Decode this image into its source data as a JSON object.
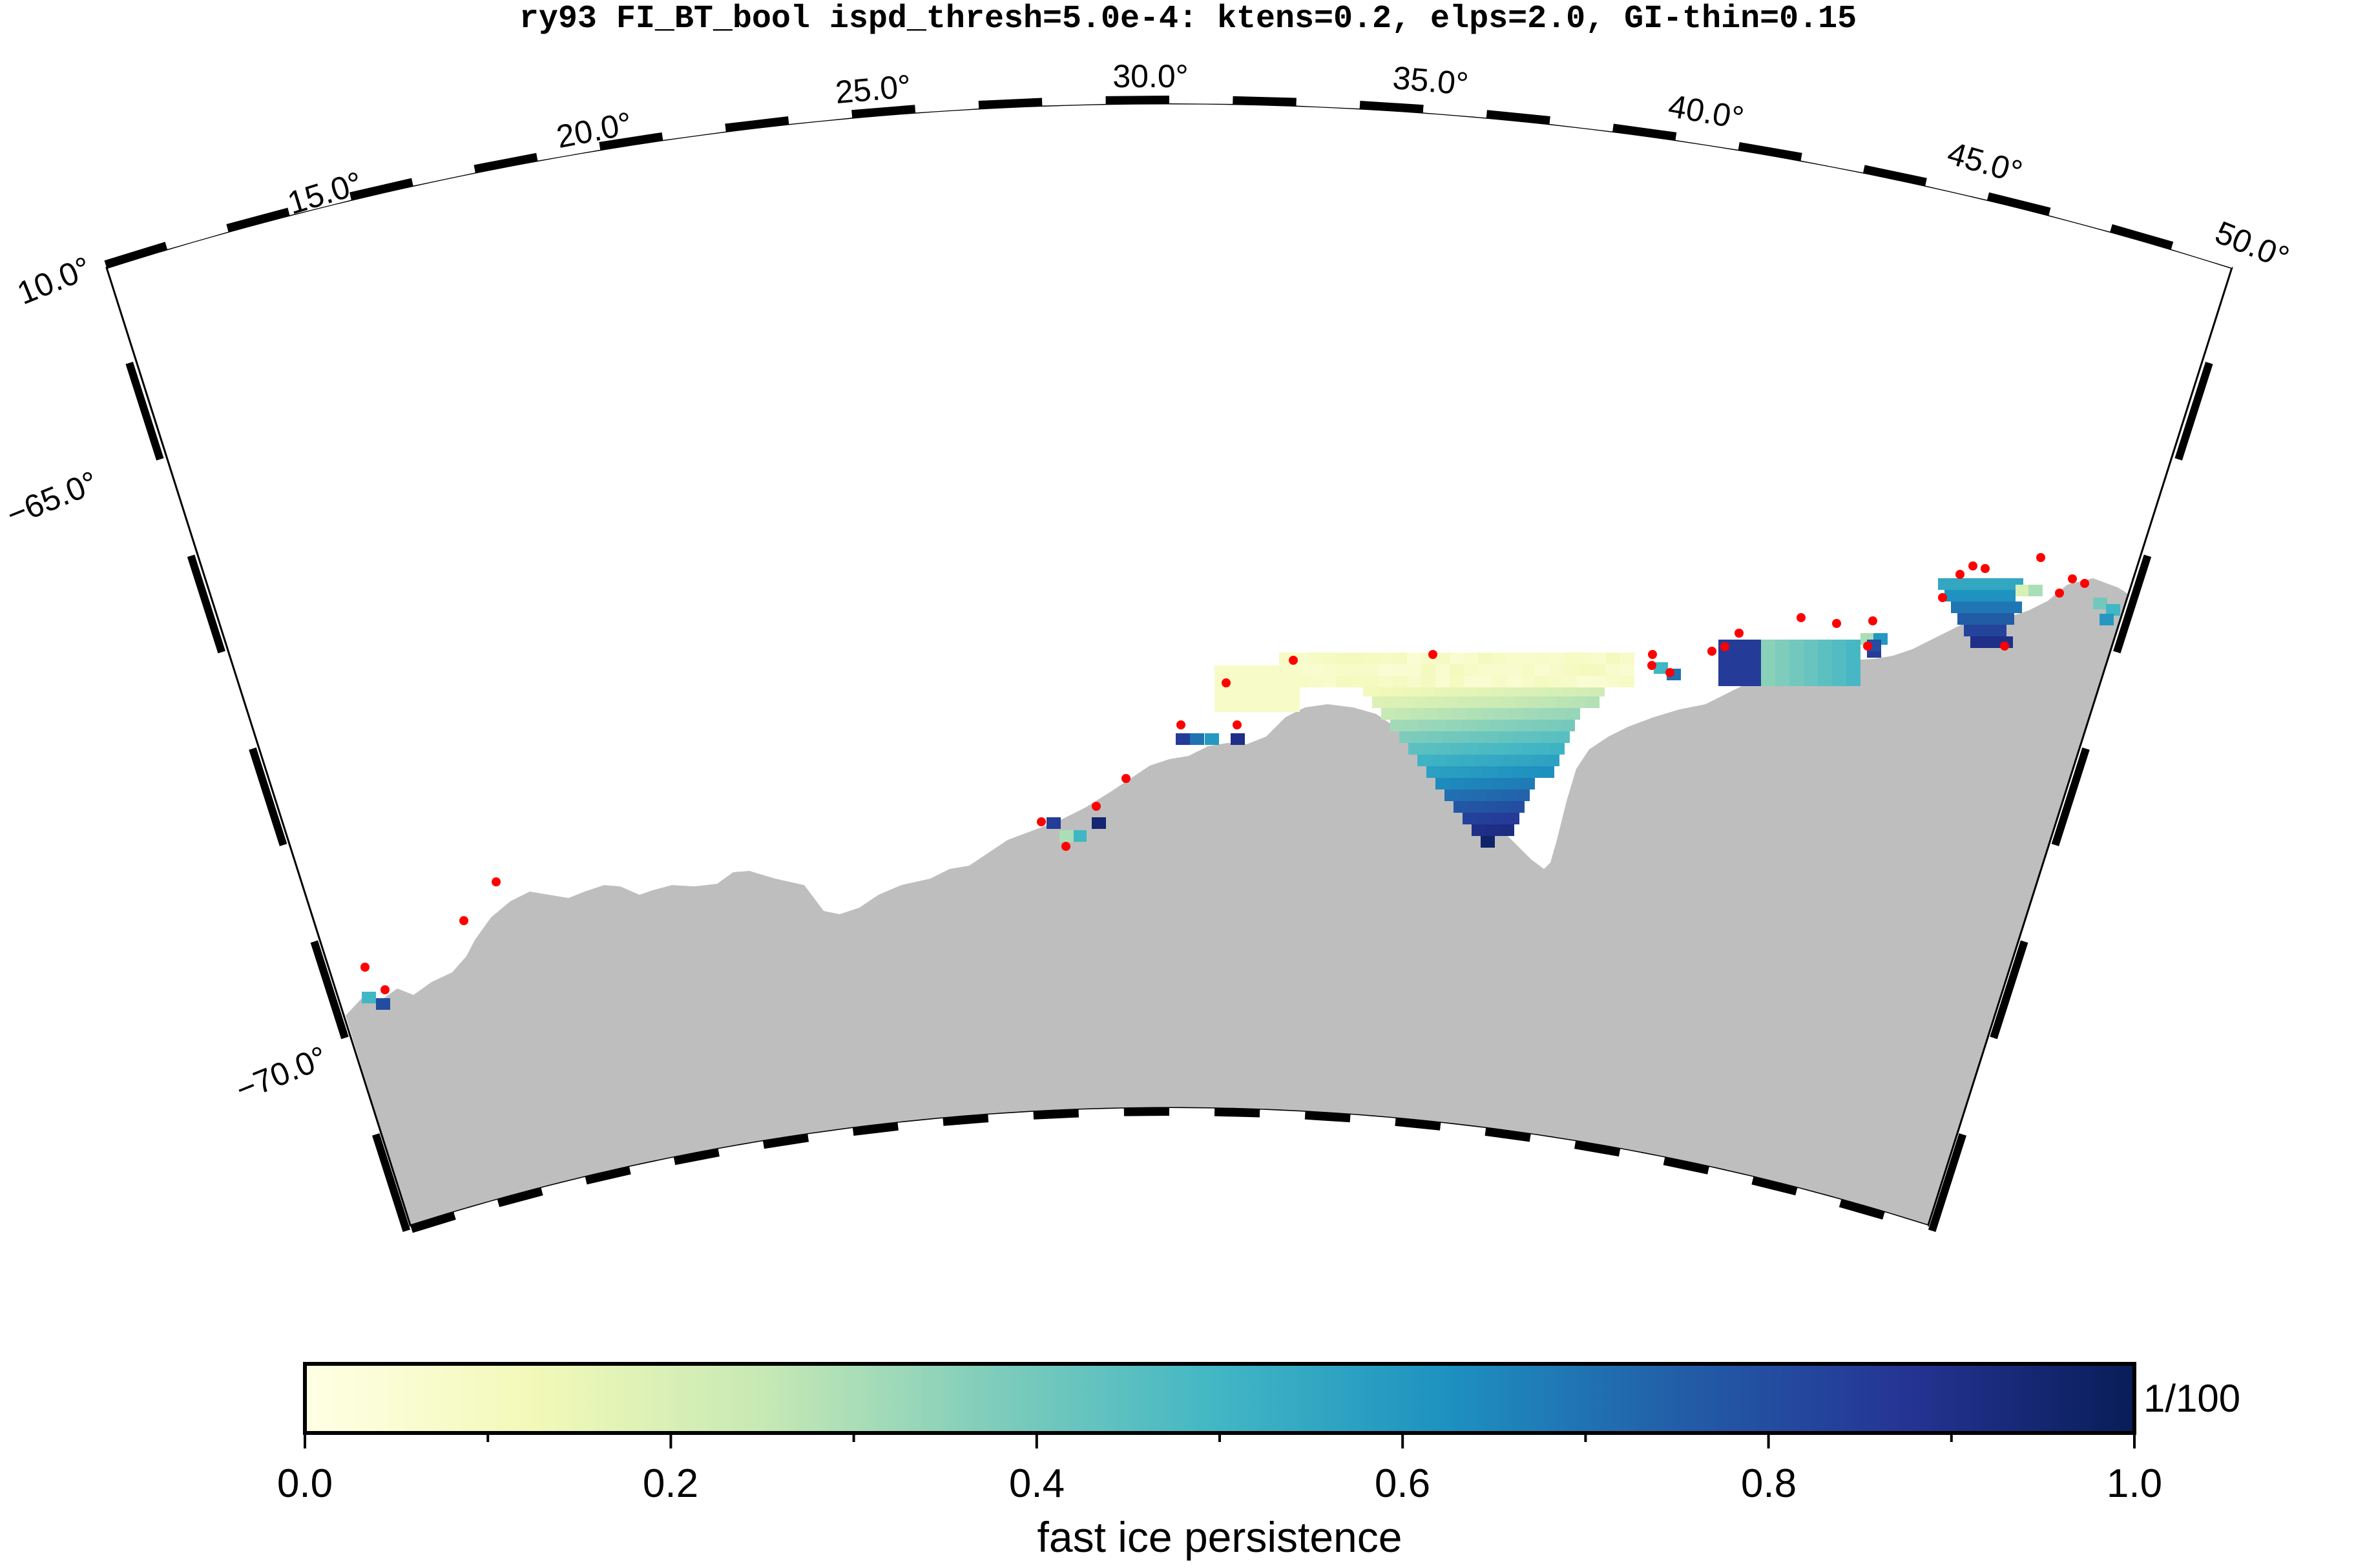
{
  "title": "ry93 FI_BT_bool ispd_thresh=5.0e-4: ktens=0.2, elps=2.0, GI-thin=0.15",
  "map": {
    "lon_labels": [
      "10.0°",
      "15.0°",
      "20.0°",
      "25.0°",
      "30.0°",
      "35.0°",
      "40.0°",
      "45.0°",
      "50.0°"
    ],
    "lat_labels": [
      "−65.0°",
      "−70.0°"
    ],
    "land_color": "#bebebe",
    "grounded_iceberg_color": "#ff0000"
  },
  "colorbar": {
    "label": "fast ice persistence",
    "unit": "1/100",
    "tick_labels": [
      "0.0",
      "0.2",
      "0.4",
      "0.6",
      "0.8",
      "1.0"
    ],
    "range": [
      0.0,
      1.0
    ],
    "palette": "YlGnBu",
    "stops": [
      "#ffffe5",
      "#f2f9b8",
      "#c7e9b4",
      "#7fcdbb",
      "#41b6c4",
      "#1d91c0",
      "#225ea8",
      "#253494",
      "#081d58"
    ]
  }
}
